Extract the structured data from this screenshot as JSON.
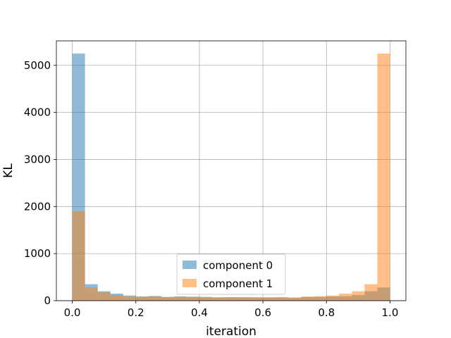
{
  "chart_data": {
    "type": "histogram",
    "xlabel": "iteration",
    "ylabel": "KL",
    "xlim": [
      -0.05,
      1.05
    ],
    "ylim": [
      0,
      5520
    ],
    "xticks": [
      0.0,
      0.2,
      0.4,
      0.6,
      0.8,
      1.0
    ],
    "xtick_labels": [
      "0.0",
      "0.2",
      "0.4",
      "0.6",
      "0.8",
      "1.0"
    ],
    "yticks": [
      0,
      1000,
      2000,
      3000,
      4000,
      5000
    ],
    "ytick_labels": [
      "0",
      "1000",
      "2000",
      "3000",
      "4000",
      "5000"
    ],
    "grid": true,
    "legend_position": "bottom-center",
    "bin_edges": [
      0.0,
      0.04,
      0.08,
      0.12,
      0.16,
      0.2,
      0.24,
      0.28,
      0.32,
      0.36,
      0.4,
      0.44,
      0.48,
      0.52,
      0.56,
      0.6,
      0.64,
      0.68,
      0.72,
      0.76,
      0.8,
      0.84,
      0.88,
      0.92,
      0.96,
      1.0
    ],
    "series": [
      {
        "name": "component 0",
        "color": "#1f77b4",
        "opacity": 0.5,
        "values": [
          5250,
          350,
          200,
          150,
          110,
          90,
          100,
          80,
          90,
          85,
          80,
          70,
          75,
          70,
          70,
          65,
          70,
          60,
          75,
          80,
          90,
          95,
          120,
          200,
          280
        ]
      },
      {
        "name": "component 1",
        "color": "#ff7f0e",
        "opacity": 0.5,
        "values": [
          1900,
          280,
          180,
          120,
          90,
          80,
          90,
          75,
          80,
          80,
          75,
          70,
          70,
          75,
          70,
          75,
          75,
          70,
          90,
          95,
          110,
          150,
          200,
          350,
          5250
        ]
      }
    ]
  }
}
